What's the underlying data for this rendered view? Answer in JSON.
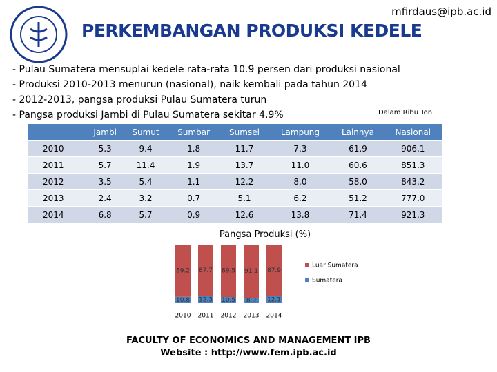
{
  "header": {
    "email": "mfirdaus@ipb.ac.id",
    "title": "PERKEMBANGAN PRODUKSI KEDELE"
  },
  "bullets": [
    "- Pulau Sumatera mensuplai kedele rata-rata 10.9 persen dari produksi nasional",
    "- Produksi 2010-2013 menurun (nasional), naik kembali pada tahun 2014",
    "- 2012-2013, pangsa produksi Pulau Sumatera turun",
    "- Pangsa produksi Jambi di Pulau Sumatera sekitar 4.9%"
  ],
  "unit_note": "Dalam Ribu Ton",
  "table": {
    "columns": [
      "Jambi",
      "Sumut",
      "Sumbar",
      "Sumsel",
      "Lampung",
      "Lainnya",
      "Nasional"
    ],
    "rows": [
      [
        "2010",
        "5.3",
        "9.4",
        "1.8",
        "11.7",
        "7.3",
        "61.9",
        "906.1"
      ],
      [
        "2011",
        "5.7",
        "11.4",
        "1.9",
        "13.7",
        "11.0",
        "60.6",
        "851.3"
      ],
      [
        "2012",
        "3.5",
        "5.4",
        "1.1",
        "12.2",
        "8.0",
        "58.0",
        "843.2"
      ],
      [
        "2013",
        "2.4",
        "3.2",
        "0.7",
        "5.1",
        "6.2",
        "51.2",
        "777.0"
      ],
      [
        "2014",
        "6.8",
        "5.7",
        "0.9",
        "12.6",
        "13.8",
        "71.4",
        "921.3"
      ]
    ]
  },
  "chart_data": {
    "type": "stacked_bar",
    "title": "Pangsa Produksi (%)",
    "categories": [
      "2010",
      "2011",
      "2012",
      "2013",
      "2014"
    ],
    "series": [
      {
        "name": "Luar Sumatera",
        "color": "#c0504d",
        "values": [
          89.2,
          87.7,
          89.5,
          91.1,
          87.9
        ]
      },
      {
        "name": "Sumatera",
        "color": "#4f81bd",
        "values": [
          10.8,
          12.3,
          10.5,
          8.9,
          12.1
        ]
      }
    ],
    "ylim": [
      0,
      100
    ]
  },
  "footer": [
    "FACULTY OF ECONOMICS AND MANAGEMENT IPB",
    "Website : http://www.fem.ipb.ac.id"
  ]
}
